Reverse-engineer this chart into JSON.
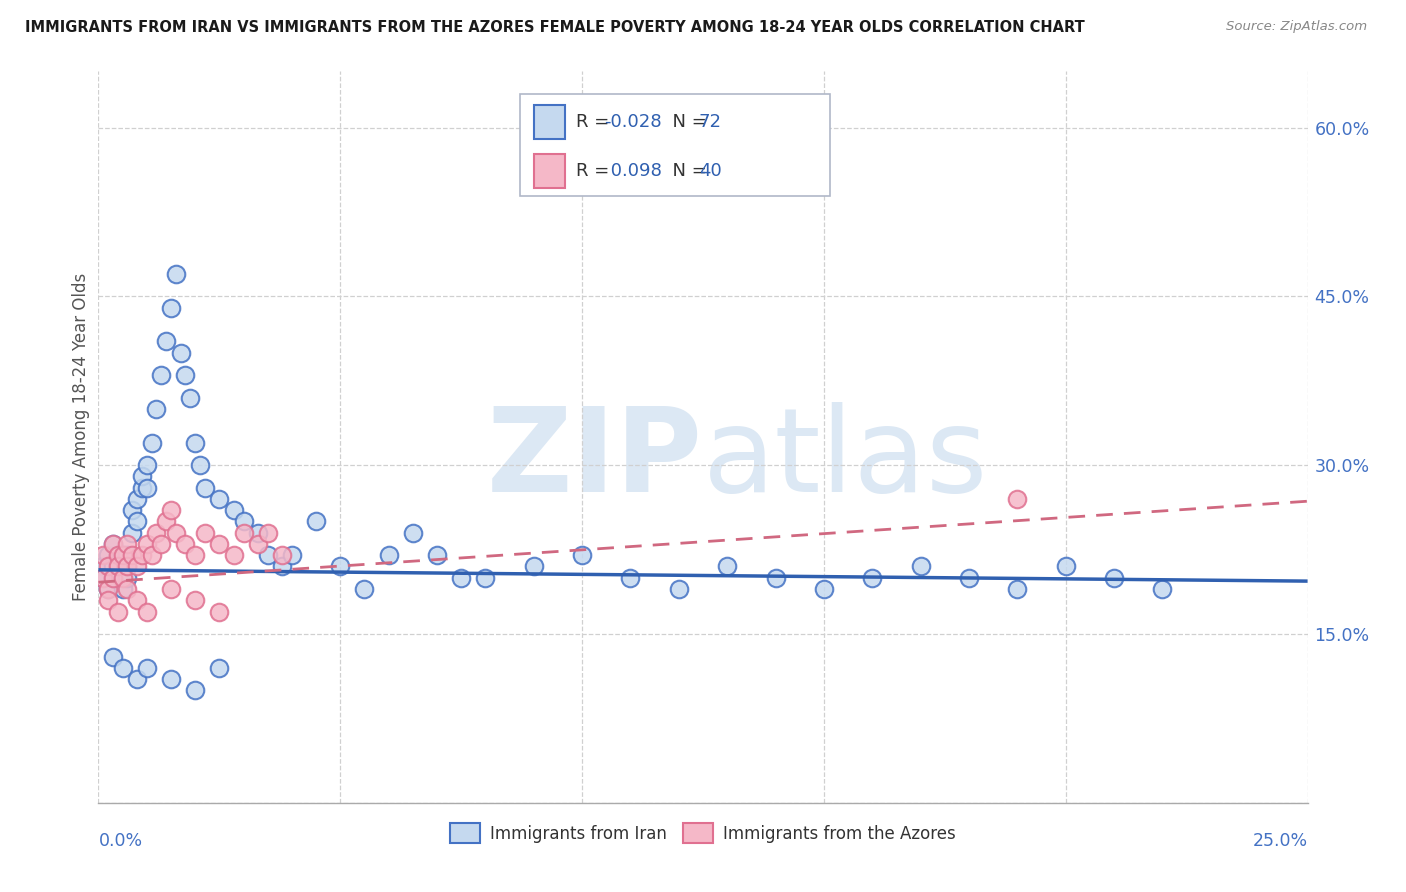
{
  "title": "IMMIGRANTS FROM IRAN VS IMMIGRANTS FROM THE AZORES FEMALE POVERTY AMONG 18-24 YEAR OLDS CORRELATION CHART",
  "source": "Source: ZipAtlas.com",
  "ylabel": "Female Poverty Among 18-24 Year Olds",
  "xlim": [
    0.0,
    0.25
  ],
  "ylim": [
    0.0,
    0.65
  ],
  "xtick_left": "0.0%",
  "xtick_right": "25.0%",
  "yticks": [
    0.0,
    0.15,
    0.3,
    0.45,
    0.6
  ],
  "ytick_labels": [
    "",
    "15.0%",
    "30.0%",
    "45.0%",
    "60.0%"
  ],
  "iran_R": -0.028,
  "iran_N": 72,
  "azores_R": 0.098,
  "azores_N": 40,
  "iran_face_color": "#c5d9ef",
  "iran_edge_color": "#4472c4",
  "azores_face_color": "#f5b8c8",
  "azores_edge_color": "#e07090",
  "iran_line_color": "#3060b0",
  "azores_line_color": "#d06880",
  "tick_label_color": "#4472c4",
  "watermark_color": "#dce8f4",
  "grid_color": "#d0d0d0",
  "title_color": "#1a1a1a",
  "source_color": "#888888",
  "ylabel_color": "#555555",
  "iran_x": [
    0.001,
    0.001,
    0.002,
    0.002,
    0.003,
    0.003,
    0.003,
    0.004,
    0.004,
    0.004,
    0.005,
    0.005,
    0.005,
    0.006,
    0.006,
    0.006,
    0.007,
    0.007,
    0.008,
    0.008,
    0.009,
    0.009,
    0.01,
    0.01,
    0.011,
    0.012,
    0.013,
    0.014,
    0.015,
    0.016,
    0.017,
    0.018,
    0.019,
    0.02,
    0.021,
    0.022,
    0.025,
    0.028,
    0.03,
    0.033,
    0.035,
    0.038,
    0.04,
    0.045,
    0.05,
    0.055,
    0.06,
    0.065,
    0.07,
    0.075,
    0.08,
    0.09,
    0.1,
    0.11,
    0.12,
    0.13,
    0.14,
    0.15,
    0.16,
    0.17,
    0.18,
    0.19,
    0.2,
    0.21,
    0.22,
    0.003,
    0.005,
    0.008,
    0.01,
    0.015,
    0.02,
    0.025
  ],
  "iran_y": [
    0.21,
    0.2,
    0.22,
    0.19,
    0.23,
    0.21,
    0.2,
    0.22,
    0.2,
    0.21,
    0.2,
    0.22,
    0.19,
    0.21,
    0.2,
    0.22,
    0.24,
    0.26,
    0.25,
    0.27,
    0.28,
    0.29,
    0.3,
    0.28,
    0.32,
    0.35,
    0.38,
    0.41,
    0.44,
    0.47,
    0.4,
    0.38,
    0.36,
    0.32,
    0.3,
    0.28,
    0.27,
    0.26,
    0.25,
    0.24,
    0.22,
    0.21,
    0.22,
    0.25,
    0.21,
    0.19,
    0.22,
    0.24,
    0.22,
    0.2,
    0.2,
    0.21,
    0.22,
    0.2,
    0.19,
    0.21,
    0.2,
    0.19,
    0.2,
    0.21,
    0.2,
    0.19,
    0.21,
    0.2,
    0.19,
    0.13,
    0.12,
    0.11,
    0.12,
    0.11,
    0.1,
    0.12
  ],
  "azores_x": [
    0.001,
    0.001,
    0.002,
    0.002,
    0.003,
    0.003,
    0.004,
    0.004,
    0.005,
    0.005,
    0.006,
    0.006,
    0.007,
    0.008,
    0.009,
    0.01,
    0.011,
    0.012,
    0.013,
    0.014,
    0.015,
    0.016,
    0.018,
    0.02,
    0.022,
    0.025,
    0.028,
    0.03,
    0.033,
    0.035,
    0.002,
    0.004,
    0.006,
    0.008,
    0.01,
    0.015,
    0.02,
    0.025,
    0.19,
    0.038
  ],
  "azores_y": [
    0.22,
    0.2,
    0.21,
    0.19,
    0.23,
    0.2,
    0.22,
    0.21,
    0.22,
    0.2,
    0.21,
    0.23,
    0.22,
    0.21,
    0.22,
    0.23,
    0.22,
    0.24,
    0.23,
    0.25,
    0.26,
    0.24,
    0.23,
    0.22,
    0.24,
    0.23,
    0.22,
    0.24,
    0.23,
    0.24,
    0.18,
    0.17,
    0.19,
    0.18,
    0.17,
    0.19,
    0.18,
    0.17,
    0.27,
    0.22
  ],
  "iran_line_x": [
    0.0,
    0.25
  ],
  "iran_line_y": [
    0.207,
    0.197
  ],
  "azores_line_x": [
    0.0,
    0.25
  ],
  "azores_line_y": [
    0.196,
    0.268
  ]
}
